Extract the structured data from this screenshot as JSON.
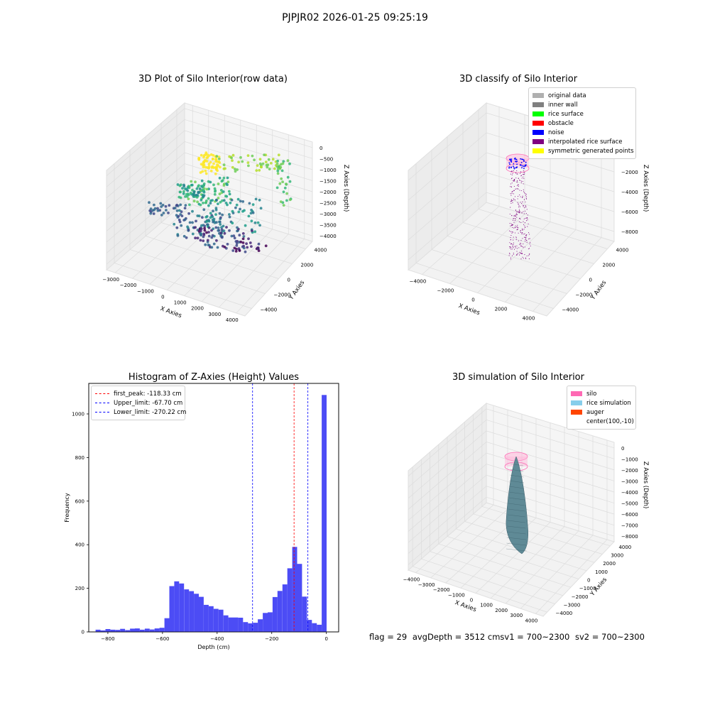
{
  "figure": {
    "suptitle": "PJPJR02 2026-01-25 09:25:19"
  },
  "chart_data": [
    {
      "type": "scatter",
      "title": "3D Plot of Silo Interior(row data)",
      "xlabel": "X Axies",
      "ylabel": "Y Axies",
      "zlabel": "Z Axies (Depth)",
      "xlim": [
        -3500,
        4500
      ],
      "ylim": [
        -4000,
        4000
      ],
      "zlim": [
        -4000,
        0
      ],
      "xticks": [
        "−3000",
        "−2000",
        "−1000",
        "0",
        "1000",
        "2000",
        "3000",
        "4000"
      ],
      "yticks": [
        "−4000",
        "−2000",
        "0",
        "2000",
        "4000"
      ],
      "zticks": [
        "0",
        "−500",
        "−1000",
        "−1500",
        "−2000",
        "−2500",
        "−3000",
        "−3500",
        "−4000"
      ],
      "colormap": "viridis",
      "point_colors": [
        "#fde725",
        "#b5de2b",
        "#6ece58",
        "#35b779",
        "#1f9e89",
        "#26828e",
        "#31688e",
        "#3e4989",
        "#482878",
        "#440154"
      ],
      "grid": true
    },
    {
      "type": "scatter",
      "title": "3D classify of Silo Interior",
      "xlabel": "X Axies",
      "ylabel": "Y Axies",
      "zlabel": "Z Axies (Depth)",
      "xlim": [
        -4500,
        4500
      ],
      "ylim": [
        -4500,
        4500
      ],
      "zlim": [
        -9000,
        0
      ],
      "xticks": [
        "−4000",
        "−2000",
        "0",
        "2000",
        "4000"
      ],
      "yticks": [
        "−4000",
        "−2000",
        "0",
        "2000",
        "4000"
      ],
      "zticks": [
        "0",
        "−2000",
        "−4000",
        "−6000",
        "−8000"
      ],
      "legend": [
        {
          "label": "original data",
          "color": "#b0b0b0"
        },
        {
          "label": "inner wall",
          "color": "#808080"
        },
        {
          "label": "rice surface",
          "color": "#00ff00"
        },
        {
          "label": "obstacle",
          "color": "#ff0000"
        },
        {
          "label": "noise",
          "color": "#0000ff"
        },
        {
          "label": "interpolated rice surface",
          "color": "#800080"
        },
        {
          "label": "symmetric generated points",
          "color": "#ffff00"
        }
      ],
      "legend_loc": "upper-right",
      "grid": true
    },
    {
      "type": "bar",
      "title": "Histogram of Z-Axies (Height) Values",
      "xlabel": "Depth (cm)",
      "ylabel": "Frequency",
      "xlim": [
        -870,
        45
      ],
      "ylim": [
        0,
        1140
      ],
      "xticks": [
        -800,
        -600,
        -400,
        -200,
        0
      ],
      "yticks": [
        0,
        200,
        400,
        600,
        800,
        1000
      ],
      "bar_color": "#4c4cf5",
      "bin_width": 18,
      "bins_left": [
        -845,
        -827,
        -809,
        -791,
        -773,
        -755,
        -737,
        -719,
        -701,
        -683,
        -665,
        -647,
        -629,
        -611,
        -593,
        -575,
        -557,
        -539,
        -521,
        -503,
        -485,
        -467,
        -449,
        -431,
        -413,
        -395,
        -377,
        -359,
        -341,
        -323,
        -305,
        -287,
        -269,
        -251,
        -233,
        -215,
        -197,
        -179,
        -161,
        -143,
        -125,
        -107,
        -89,
        -71,
        -53,
        -35,
        -17
      ],
      "values": [
        10,
        7,
        13,
        10,
        9,
        14,
        8,
        15,
        16,
        10,
        15,
        11,
        16,
        19,
        63,
        210,
        232,
        222,
        195,
        187,
        175,
        161,
        124,
        118,
        106,
        102,
        76,
        66,
        66,
        65,
        45,
        39,
        42,
        58,
        87,
        90,
        160,
        188,
        218,
        292,
        390,
        312,
        162,
        55,
        40,
        33,
        1087
      ],
      "vlines": [
        {
          "label": "first_peak: -118.33 cm",
          "x": -118.33,
          "color": "#ff0000"
        },
        {
          "label": "Upper_limit: -67.70 cm",
          "x": -67.7,
          "color": "#0000ff"
        },
        {
          "label": "Lower_limit: -270.22 cm",
          "x": -270.22,
          "color": "#0000ff"
        }
      ],
      "legend_loc": "upper-left"
    },
    {
      "type": "surface",
      "title": "3D simulation of Silo Interior",
      "xlabel": "X Axies",
      "ylabel": "Y Axies",
      "zlabel": "Z Axies (Depth)",
      "xlim": [
        -4500,
        4500
      ],
      "ylim": [
        -4500,
        4500
      ],
      "zlim": [
        -8500,
        0
      ],
      "xticks": [
        "−4000",
        "−3000",
        "−2000",
        "−1000",
        "0",
        "1000",
        "2000",
        "3000",
        "4000"
      ],
      "yticks": [
        "−4000",
        "−3000",
        "−2000",
        "−1000",
        "0",
        "1000",
        "2000",
        "3000",
        "4000"
      ],
      "zticks": [
        "0",
        "−1000",
        "−2000",
        "−3000",
        "−4000",
        "−5000",
        "−6000",
        "−7000",
        "−8000"
      ],
      "legend": [
        {
          "label": "silo",
          "color": "#ff69b4"
        },
        {
          "label": "rice simulation",
          "color": "#87ceeb"
        },
        {
          "label": "auger",
          "color": "#ff4500"
        },
        {
          "label": "center(100,-10)",
          "color": ""
        }
      ],
      "legend_loc": "upper-right",
      "grid": true
    }
  ],
  "footer": {
    "flag": "flag = 29",
    "avg": "avgDepth = 3512 cmsv1 = 700~2300",
    "sv2": "sv2 = 700~2300"
  }
}
